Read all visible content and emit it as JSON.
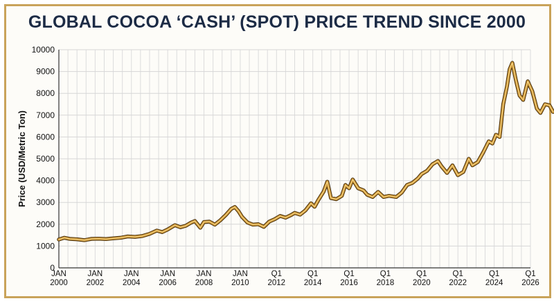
{
  "chart_data": {
    "type": "line",
    "title": "GLOBAL COCOA ‘CASH’ (SPOT) PRICE TREND SINCE 2000",
    "xlabel": "",
    "ylabel": "Price (USD/Metric Ton)",
    "ylim": [
      0,
      10000
    ],
    "xlim": [
      2000,
      2026
    ],
    "grid": true,
    "yticks": [
      0,
      1000,
      2000,
      3000,
      4000,
      5000,
      6000,
      7000,
      8000,
      9000,
      10000
    ],
    "xticks": [
      {
        "x": 2000,
        "line1": "JAN",
        "line2": "2000"
      },
      {
        "x": 2002,
        "line1": "JAN",
        "line2": "2002"
      },
      {
        "x": 2004,
        "line1": "JAN",
        "line2": "2004"
      },
      {
        "x": 2006,
        "line1": "JAN",
        "line2": "2006"
      },
      {
        "x": 2008,
        "line1": "JAN",
        "line2": "2008"
      },
      {
        "x": 2010,
        "line1": "JAN",
        "line2": "2010"
      },
      {
        "x": 2012,
        "line1": "Q1",
        "line2": "2012"
      },
      {
        "x": 2014,
        "line1": "Q1",
        "line2": "2014"
      },
      {
        "x": 2016,
        "line1": "Q1",
        "line2": "2016"
      },
      {
        "x": 2018,
        "line1": "Q1",
        "line2": "2018"
      },
      {
        "x": 2020,
        "line1": "Q1",
        "line2": "2020"
      },
      {
        "x": 2022,
        "line1": "Q1",
        "line2": "2022"
      },
      {
        "x": 2024,
        "line1": "Q1",
        "line2": "2024"
      },
      {
        "x": 2026,
        "line1": "Q1",
        "line2": "2026"
      }
    ],
    "series": [
      {
        "color": "#c8902f",
        "points": [
          [
            2000.0,
            1300
          ],
          [
            2000.3,
            1380
          ],
          [
            2000.6,
            1330
          ],
          [
            2001.0,
            1310
          ],
          [
            2001.4,
            1270
          ],
          [
            2001.8,
            1330
          ],
          [
            2002.2,
            1340
          ],
          [
            2002.6,
            1320
          ],
          [
            2003.0,
            1350
          ],
          [
            2003.4,
            1380
          ],
          [
            2003.8,
            1440
          ],
          [
            2004.2,
            1420
          ],
          [
            2004.6,
            1460
          ],
          [
            2005.0,
            1560
          ],
          [
            2005.4,
            1710
          ],
          [
            2005.7,
            1640
          ],
          [
            2006.0,
            1760
          ],
          [
            2006.4,
            1960
          ],
          [
            2006.7,
            1860
          ],
          [
            2007.0,
            1930
          ],
          [
            2007.3,
            2080
          ],
          [
            2007.5,
            2150
          ],
          [
            2007.8,
            1840
          ],
          [
            2008.0,
            2100
          ],
          [
            2008.3,
            2120
          ],
          [
            2008.6,
            1980
          ],
          [
            2008.9,
            2180
          ],
          [
            2009.2,
            2420
          ],
          [
            2009.5,
            2700
          ],
          [
            2009.7,
            2790
          ],
          [
            2009.9,
            2600
          ],
          [
            2010.1,
            2340
          ],
          [
            2010.4,
            2080
          ],
          [
            2010.7,
            1980
          ],
          [
            2011.0,
            2000
          ],
          [
            2011.3,
            1880
          ],
          [
            2011.6,
            2120
          ],
          [
            2011.9,
            2230
          ],
          [
            2012.2,
            2380
          ],
          [
            2012.5,
            2300
          ],
          [
            2012.8,
            2420
          ],
          [
            2013.0,
            2520
          ],
          [
            2013.3,
            2440
          ],
          [
            2013.6,
            2640
          ],
          [
            2013.9,
            2960
          ],
          [
            2014.1,
            2800
          ],
          [
            2014.3,
            3100
          ],
          [
            2014.6,
            3500
          ],
          [
            2014.8,
            3950
          ],
          [
            2015.0,
            3200
          ],
          [
            2015.3,
            3150
          ],
          [
            2015.6,
            3300
          ],
          [
            2015.8,
            3800
          ],
          [
            2016.0,
            3650
          ],
          [
            2016.2,
            4050
          ],
          [
            2016.5,
            3650
          ],
          [
            2016.8,
            3550
          ],
          [
            2017.0,
            3350
          ],
          [
            2017.3,
            3250
          ],
          [
            2017.6,
            3480
          ],
          [
            2017.9,
            3250
          ],
          [
            2018.2,
            3300
          ],
          [
            2018.6,
            3250
          ],
          [
            2018.9,
            3450
          ],
          [
            2019.2,
            3800
          ],
          [
            2019.5,
            3900
          ],
          [
            2019.8,
            4100
          ],
          [
            2020.0,
            4300
          ],
          [
            2020.3,
            4450
          ],
          [
            2020.6,
            4750
          ],
          [
            2020.9,
            4900
          ],
          [
            2021.1,
            4650
          ],
          [
            2021.4,
            4350
          ],
          [
            2021.7,
            4700
          ],
          [
            2022.0,
            4250
          ],
          [
            2022.3,
            4400
          ],
          [
            2022.6,
            5000
          ],
          [
            2022.8,
            4700
          ],
          [
            2023.1,
            4850
          ],
          [
            2023.4,
            5300
          ],
          [
            2023.7,
            5800
          ],
          [
            2023.9,
            5700
          ],
          [
            2024.1,
            6100
          ],
          [
            2024.3,
            6000
          ],
          [
            2024.5,
            7500
          ],
          [
            2024.7,
            8300
          ],
          [
            2024.85,
            9100
          ],
          [
            2025.0,
            9400
          ],
          [
            2025.2,
            8600
          ],
          [
            2025.4,
            7900
          ],
          [
            2025.6,
            7700
          ],
          [
            2025.85,
            8550
          ],
          [
            2026.1,
            8100
          ],
          [
            2026.35,
            7300
          ],
          [
            2026.55,
            7100
          ],
          [
            2026.8,
            7500
          ],
          [
            2027.05,
            7450
          ],
          [
            2027.25,
            7150
          ]
        ]
      }
    ]
  }
}
